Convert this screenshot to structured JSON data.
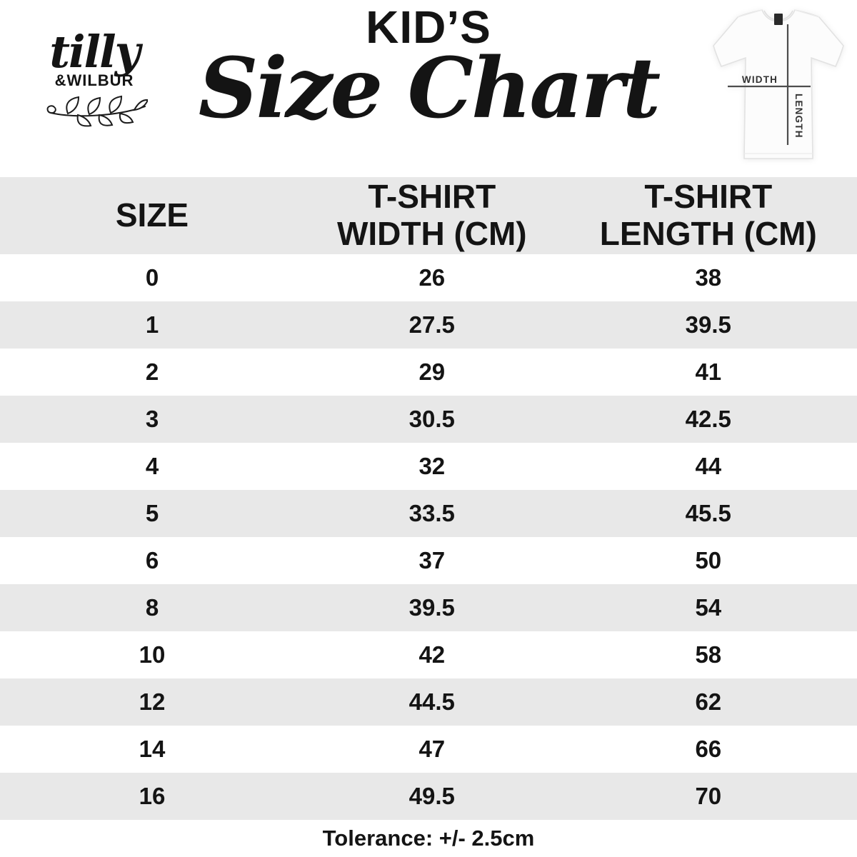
{
  "brand": {
    "script_name": "tilly",
    "caps_name": "&WILBUR"
  },
  "title": {
    "kicker": "KID’S",
    "main": "Size Chart"
  },
  "tee_diagram": {
    "width_label": "WIDTH",
    "length_label": "LENGTH"
  },
  "table": {
    "headers": [
      [
        "SIZE",
        ""
      ],
      [
        "T-SHIRT",
        "WIDTH (CM)"
      ],
      [
        "T-SHIRT",
        "LENGTH (CM)"
      ]
    ],
    "rows": [
      [
        "0",
        "26",
        "38"
      ],
      [
        "1",
        "27.5",
        "39.5"
      ],
      [
        "2",
        "29",
        "41"
      ],
      [
        "3",
        "30.5",
        "42.5"
      ],
      [
        "4",
        "32",
        "44"
      ],
      [
        "5",
        "33.5",
        "45.5"
      ],
      [
        "6",
        "37",
        "50"
      ],
      [
        "8",
        "39.5",
        "54"
      ],
      [
        "10",
        "42",
        "58"
      ],
      [
        "12",
        "44.5",
        "62"
      ],
      [
        "14",
        "47",
        "66"
      ],
      [
        "16",
        "49.5",
        "70"
      ]
    ]
  },
  "footer": {
    "tolerance": "Tolerance: +/- 2.5cm"
  },
  "colors": {
    "stripe": "#e8e8e8",
    "text": "#141414",
    "crosshair": "#4d4d4d",
    "tee_outline": "#e2e2e2"
  },
  "chart_data": {
    "type": "table",
    "title": "KID’S Size Chart",
    "columns": [
      "SIZE",
      "T-SHIRT WIDTH (CM)",
      "T-SHIRT LENGTH (CM)"
    ],
    "categories": [
      "0",
      "1",
      "2",
      "3",
      "4",
      "5",
      "6",
      "8",
      "10",
      "12",
      "14",
      "16"
    ],
    "series": [
      {
        "name": "T-SHIRT WIDTH (CM)",
        "values": [
          26,
          27.5,
          29,
          30.5,
          32,
          33.5,
          37,
          39.5,
          42,
          44.5,
          47,
          49.5
        ]
      },
      {
        "name": "T-SHIRT LENGTH (CM)",
        "values": [
          38,
          39.5,
          41,
          42.5,
          44,
          45.5,
          50,
          54,
          58,
          62,
          66,
          70
        ]
      }
    ],
    "annotations": [
      "Tolerance: +/- 2.5cm"
    ],
    "layout": {
      "striped_rows": true,
      "stripe_color": "#e8e8e8",
      "grid": false
    }
  }
}
